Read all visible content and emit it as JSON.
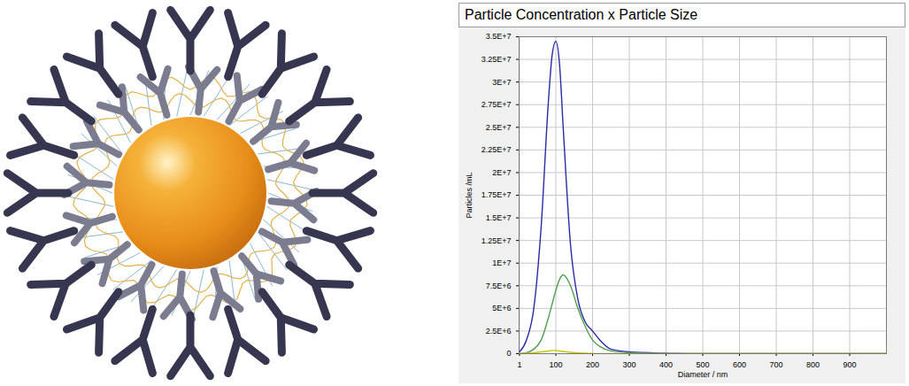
{
  "chart_data": {
    "type": "line",
    "title": "Particle Concentration x Particle Size",
    "x_label": "Diameter / nm",
    "y_label": "Particles /mL",
    "x": [
      1,
      20,
      40,
      60,
      80,
      90,
      100,
      110,
      120,
      140,
      160,
      180,
      200,
      220,
      250,
      300,
      400,
      500,
      700,
      1000
    ],
    "series": [
      {
        "color": "#2a2aa8",
        "values": [
          200000,
          1500000,
          5000000,
          14000000,
          28000000,
          33000000,
          34500000,
          32000000,
          25000000,
          12000000,
          6000000,
          3500000,
          2500000,
          1500000,
          500000,
          200000,
          50000,
          0,
          0,
          0
        ]
      },
      {
        "color": "#4f9f4f",
        "values": [
          0,
          100000,
          500000,
          1500000,
          4000000,
          5500000,
          7000000,
          8200000,
          8700000,
          7500000,
          5000000,
          3000000,
          1500000,
          800000,
          300000,
          100000,
          0,
          0,
          0,
          0
        ]
      },
      {
        "color": "#c8c400",
        "values": [
          0,
          50000,
          100000,
          200000,
          300000,
          350000,
          350000,
          300000,
          250000,
          150000,
          100000,
          50000,
          30000,
          0,
          0,
          0,
          0,
          0,
          0,
          0
        ]
      }
    ],
    "xlim": [
      0,
      1000
    ],
    "xticks": [
      1,
      100,
      200,
      300,
      400,
      500,
      600,
      700,
      800,
      900
    ],
    "ylim": [
      0,
      35000000
    ],
    "yticks": [
      0,
      {
        "value": 2500000,
        "label": "2.5E+6"
      },
      {
        "value": 5000000,
        "label": "5E+6"
      },
      {
        "value": 7500000,
        "label": "7.5E+6"
      },
      {
        "value": 10000000,
        "label": "1E+7"
      },
      {
        "value": 12500000,
        "label": "1.25E+7"
      },
      {
        "value": 15000000,
        "label": "1.5E+7"
      },
      {
        "value": 17500000,
        "label": "1.75E+7"
      },
      {
        "value": 20000000,
        "label": "2E+7"
      },
      {
        "value": 22500000,
        "label": "2.25E+7"
      },
      {
        "value": 25000000,
        "label": "2.5E+7"
      },
      {
        "value": 27500000,
        "label": "2.75E+7"
      },
      {
        "value": 30000000,
        "label": "3E+7"
      },
      {
        "value": 32500000,
        "label": "3.25E+7"
      },
      {
        "value": 35000000,
        "label": "3.5E+7"
      }
    ],
    "grid": true
  }
}
